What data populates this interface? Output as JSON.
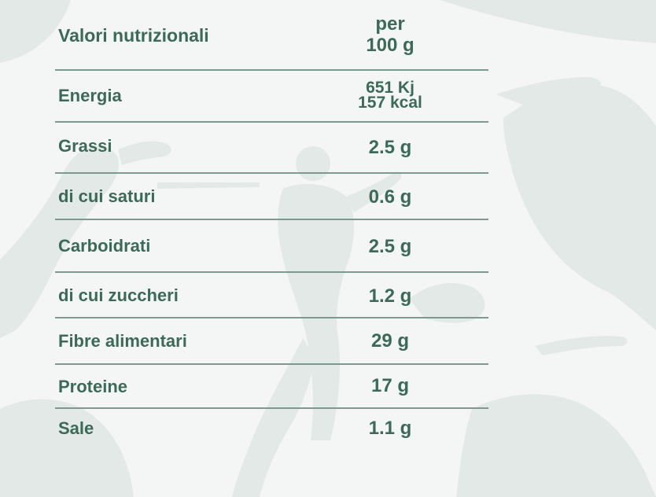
{
  "header": {
    "label": "Valori nutrizionali",
    "value_line1": "per",
    "value_line2": "100 g"
  },
  "rows": [
    {
      "label": "Energia",
      "value_line1": "651 Kj",
      "value_line2": "157 kcal"
    },
    {
      "label": "Grassi",
      "value": "2.5 g"
    },
    {
      "label": "di cui saturi",
      "value": "0.6 g"
    },
    {
      "label": "Carboidrati",
      "value": "2.5 g"
    },
    {
      "label": "di cui zuccheri",
      "value": "1.2 g"
    },
    {
      "label": "Fibre alimentari",
      "value": "29 g"
    },
    {
      "label": "Proteine",
      "value": "17 g"
    },
    {
      "label": "Sale",
      "value": "1.1 g"
    }
  ],
  "colors": {
    "text": "#3b6a58",
    "divider": "#7d9a8e",
    "background": "#f4f6f5",
    "silhouettes": "#e2e8e5"
  }
}
